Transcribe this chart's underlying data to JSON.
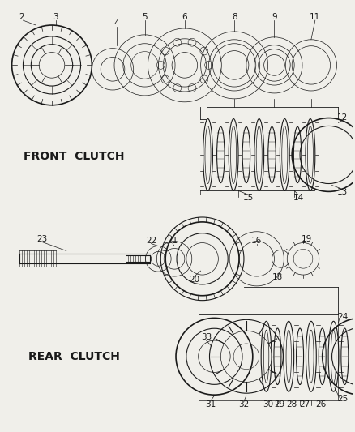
{
  "bg_color": "#f0efea",
  "line_color": "#1a1a1a",
  "front_clutch_label": "FRONT  CLUTCH",
  "rear_clutch_label": "REAR  CLUTCH",
  "font_size_label": 10,
  "font_size_number": 7.5
}
